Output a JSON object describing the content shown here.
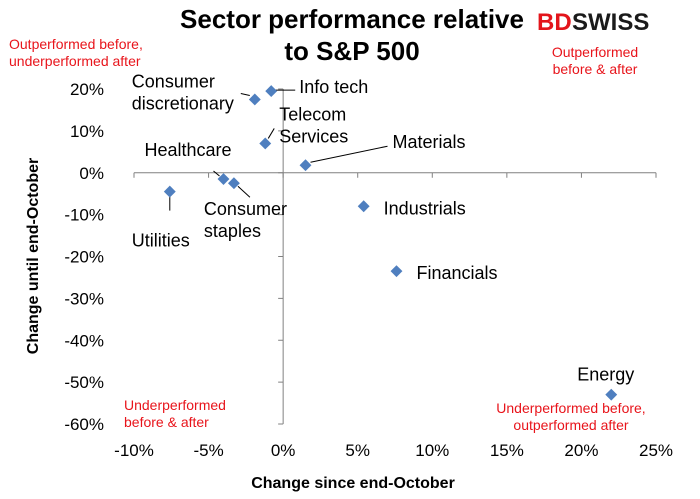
{
  "logo": {
    "part1": "BD",
    "part2": "SWISS"
  },
  "chart_data": {
    "type": "scatter",
    "title": [
      "Sector performance relative",
      "to S&P 500"
    ],
    "xlabel": "Change since end-October",
    "ylabel": "Change until end-October",
    "xlim": [
      -10,
      25
    ],
    "ylim": [
      -60,
      20
    ],
    "x_ticks": [
      "-10%",
      "-5%",
      "0%",
      "5%",
      "10%",
      "15%",
      "20%",
      "25%"
    ],
    "y_ticks": [
      "20%",
      "10%",
      "0%",
      "-10%",
      "-20%",
      "-30%",
      "-40%",
      "-50%",
      "-60%"
    ],
    "marker_color": "#4f7fbf",
    "points": [
      {
        "label": [
          "Info tech"
        ],
        "x": -0.8,
        "y": 19.5
      },
      {
        "label": [
          "Consumer",
          "discretionary"
        ],
        "x": -1.9,
        "y": 17.5
      },
      {
        "label": [
          "Telecom",
          "Services"
        ],
        "x": -1.2,
        "y": 7.0
      },
      {
        "label": [
          "Materials"
        ],
        "x": 1.5,
        "y": 1.8
      },
      {
        "label": [
          "Healthcare"
        ],
        "x": -4.0,
        "y": -1.5
      },
      {
        "label": [
          "Consumer",
          "staples"
        ],
        "x": -3.3,
        "y": -2.5
      },
      {
        "label": [
          "Utilities"
        ],
        "x": -7.6,
        "y": -4.5
      },
      {
        "label": [
          "Industrials"
        ],
        "x": 5.4,
        "y": -8.0
      },
      {
        "label": [
          "Financials"
        ],
        "x": 7.6,
        "y": -23.5
      },
      {
        "label": [
          "Energy"
        ],
        "x": 22.0,
        "y": -53.0
      }
    ],
    "quadrant_notes": {
      "top_left": [
        "Outperformed before,",
        "underperformed after"
      ],
      "top_right": [
        "Outperformed",
        "before & after"
      ],
      "bottom_left": [
        "Underperformed",
        "before & after"
      ],
      "bottom_right": [
        "Underperformed before,",
        "outperformed after"
      ]
    },
    "quadrant_color": "#e8141b"
  }
}
